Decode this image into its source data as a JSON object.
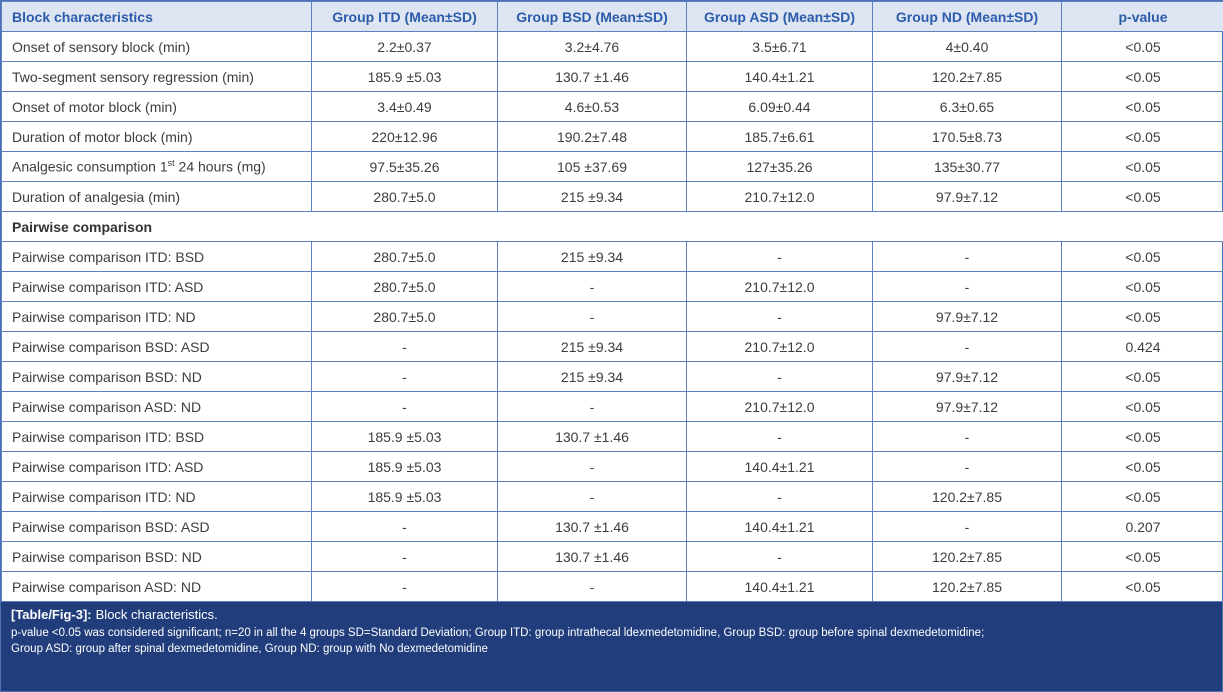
{
  "table": {
    "columns": [
      "Block characteristics",
      "Group ITD (Mean±SD)",
      "Group BSD (Mean±SD)",
      "Group ASD (Mean±SD)",
      "Group ND (Mean±SD)",
      "p-value"
    ],
    "rows": [
      {
        "label": "Onset of sensory block (min)",
        "values": [
          "2.2±0.37",
          "3.2±4.76",
          "3.5±6.71",
          "4±0.40",
          "<0.05"
        ]
      },
      {
        "label": "Two-segment sensory regression (min)",
        "values": [
          "185.9 ±5.03",
          "130.7 ±1.46",
          "140.4±1.21",
          "120.2±7.85",
          "<0.05"
        ]
      },
      {
        "label": "Onset of motor block (min)",
        "values": [
          "3.4±0.49",
          "4.6±0.53",
          "6.09±0.44",
          "6.3±0.65",
          "<0.05"
        ]
      },
      {
        "label": "Duration of motor block (min)",
        "values": [
          "220±12.96",
          "190.2±7.48",
          "185.7±6.61",
          "170.5±8.73",
          "<0.05"
        ]
      },
      {
        "label": "Analgesic consumption 1st 24 hours (mg)",
        "values": [
          "97.5±35.26",
          "105 ±37.69",
          "127±35.26",
          "135±30.77",
          "<0.05"
        ]
      },
      {
        "label": "Duration of analgesia (min)",
        "values": [
          "280.7±5.0",
          "215 ±9.34",
          "210.7±12.0",
          "97.9±7.12",
          "<0.05"
        ]
      },
      {
        "section": "Pairwise comparison"
      },
      {
        "label": "Pairwise comparison ITD: BSD",
        "values": [
          "280.7±5.0",
          "215 ±9.34",
          "-",
          "-",
          "<0.05"
        ]
      },
      {
        "label": "Pairwise comparison ITD: ASD",
        "values": [
          "280.7±5.0",
          "-",
          "210.7±12.0",
          "-",
          "<0.05"
        ]
      },
      {
        "label": "Pairwise comparison ITD: ND",
        "values": [
          "280.7±5.0",
          "-",
          "-",
          "97.9±7.12",
          "<0.05"
        ]
      },
      {
        "label": "Pairwise comparison BSD: ASD",
        "values": [
          "-",
          "215 ±9.34",
          "210.7±12.0",
          "-",
          "0.424"
        ]
      },
      {
        "label": "Pairwise comparison BSD: ND",
        "values": [
          "-",
          "215 ±9.34",
          "-",
          "97.9±7.12",
          "<0.05"
        ]
      },
      {
        "label": "Pairwise comparison ASD: ND",
        "values": [
          "-",
          "-",
          "210.7±12.0",
          "97.9±7.12",
          "<0.05"
        ]
      },
      {
        "label": "Pairwise comparison ITD: BSD",
        "values": [
          "185.9 ±5.03",
          "130.7 ±1.46",
          "-",
          "-",
          "<0.05"
        ]
      },
      {
        "label": "Pairwise comparison ITD: ASD",
        "values": [
          "185.9 ±5.03",
          "-",
          "140.4±1.21",
          "-",
          "<0.05"
        ]
      },
      {
        "label": "Pairwise comparison ITD: ND",
        "values": [
          "185.9 ±5.03",
          "-",
          "-",
          "120.2±7.85",
          "<0.05"
        ]
      },
      {
        "label": "Pairwise comparison BSD: ASD",
        "values": [
          "-",
          "130.7 ±1.46",
          "140.4±1.21",
          "-",
          "0.207"
        ]
      },
      {
        "label": "Pairwise comparison BSD: ND",
        "values": [
          "-",
          "130.7 ±1.46",
          "-",
          "120.2±7.85",
          "<0.05"
        ]
      },
      {
        "label": "Pairwise comparison ASD: ND",
        "values": [
          "-",
          "-",
          "140.4±1.21",
          "120.2±7.85",
          "<0.05"
        ]
      }
    ]
  },
  "caption": {
    "tag": "[Table/Fig-3]:",
    "title": "Block characteristics.",
    "note_line1": "p-value <0.05 was considered significant; n=20 in all the 4 groups SD=Standard Deviation; Group ITD: group intrathecal ldexmedetomidine, Group BSD: group before spinal dexmedetomidine;",
    "note_line2": "Group ASD: group after spinal dexmedetomidine, Group ND: group with No dexmedetomidine"
  },
  "colors": {
    "header_bg": "#dde4f2",
    "header_text": "#2b5cab",
    "border": "#5d80c0",
    "footer_bg": "#213d7b",
    "footer_text": "#ffffff"
  }
}
